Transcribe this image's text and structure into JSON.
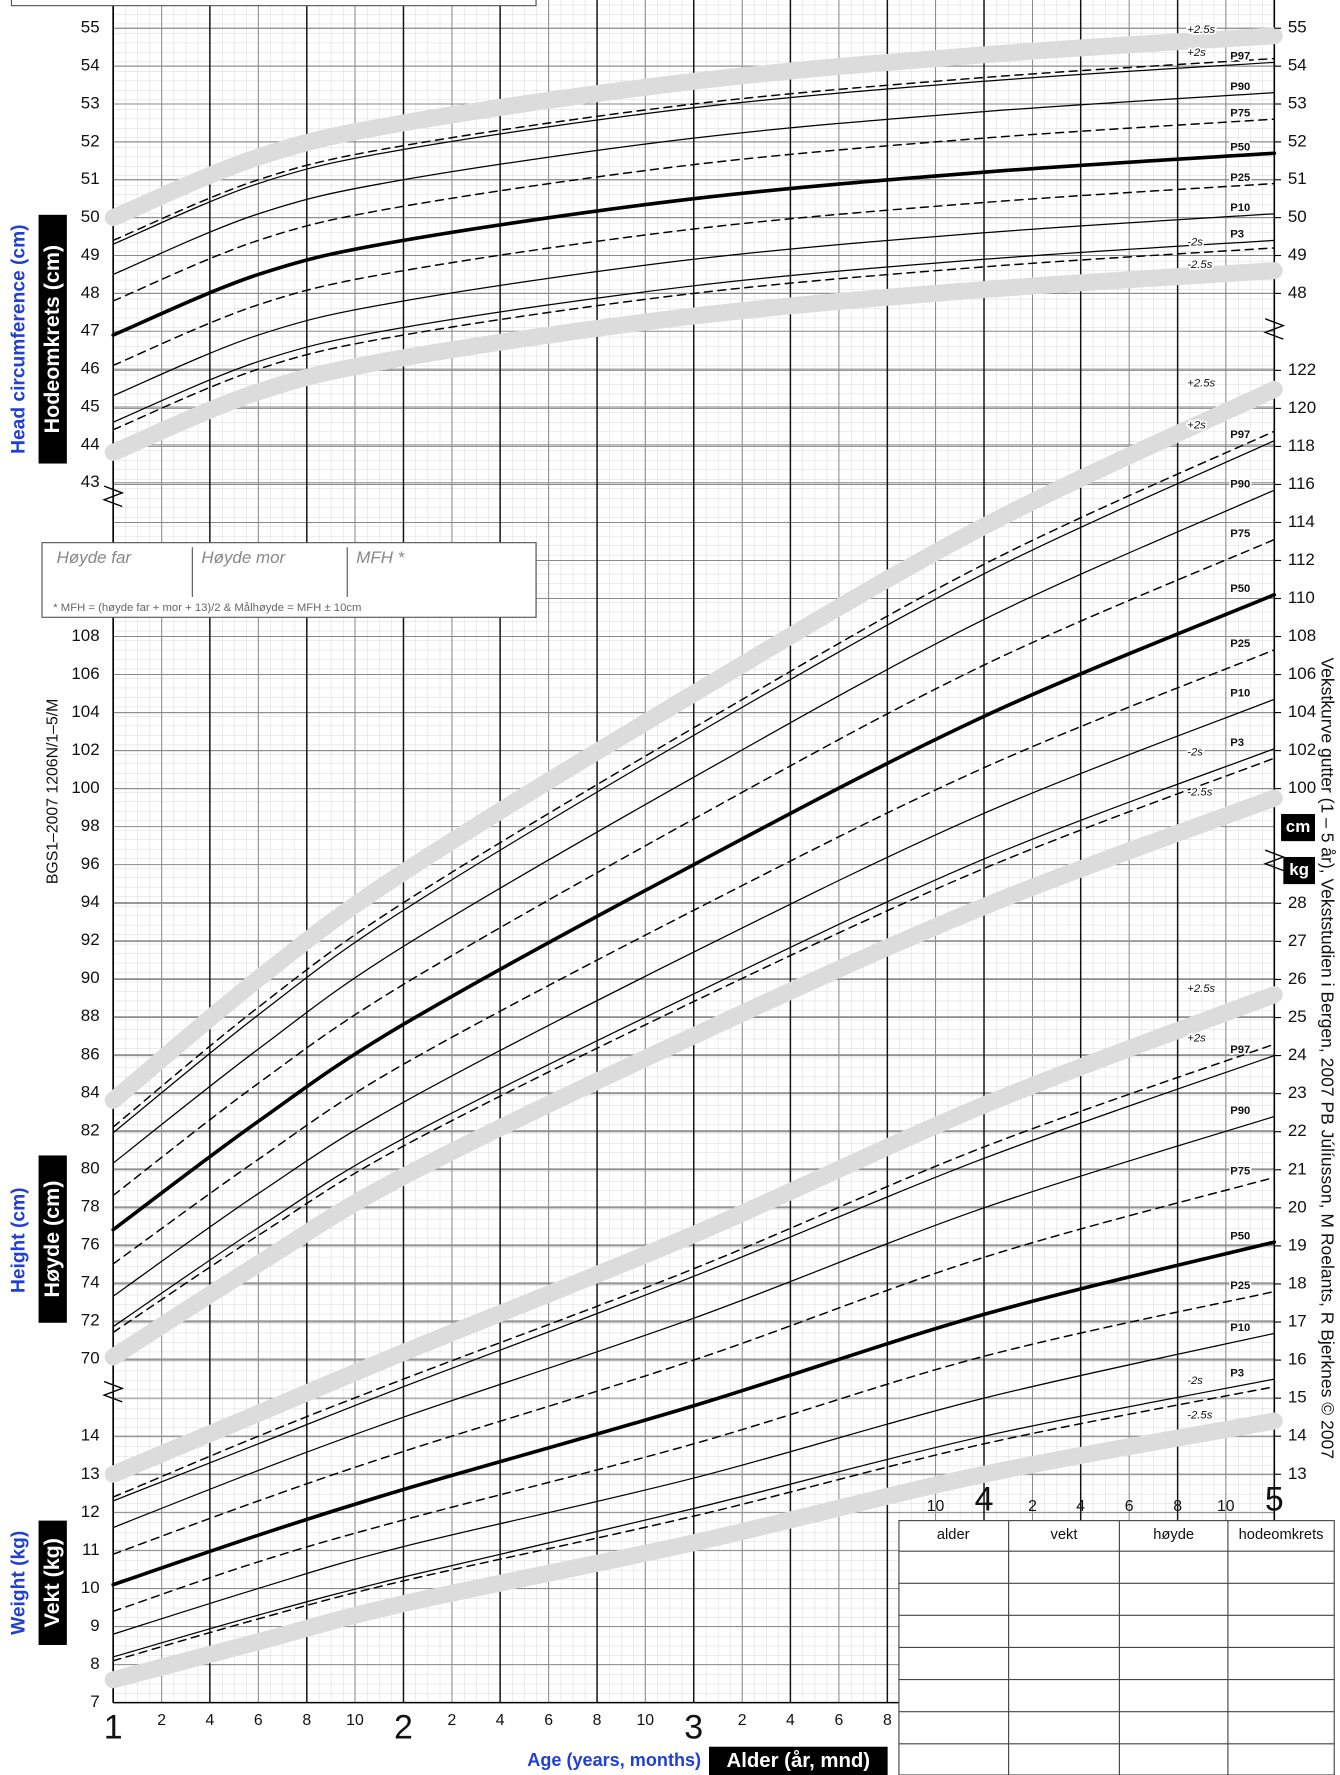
{
  "chart_data": [
    {
      "type": "line",
      "ylabel": "Hodeomkrets (cm)",
      "ylabel_en": "Head circumference (cm)",
      "x": [
        1,
        1.5,
        2,
        3,
        4,
        5
      ],
      "xlim": [
        1,
        5
      ],
      "ylim": [
        43,
        55.5
      ],
      "yticks": [
        43,
        44,
        45,
        46,
        47,
        48,
        49,
        50,
        51,
        52,
        53,
        54,
        55
      ],
      "right_yticks": [
        48,
        49,
        50,
        51,
        52,
        53,
        54,
        55
      ],
      "series": [
        {
          "name": "+2.5s",
          "style": "band",
          "color": "#dcdcdc",
          "values": [
            50.0,
            51.6,
            52.5,
            53.6,
            54.3,
            54.8
          ]
        },
        {
          "name": "+2s",
          "style": "sd-dashed",
          "color": "#000000",
          "values": [
            49.4,
            51.0,
            51.9,
            53.0,
            53.7,
            54.2
          ]
        },
        {
          "name": "P97",
          "style": "solid",
          "color": "#000000",
          "values": [
            49.3,
            50.9,
            51.8,
            52.9,
            53.6,
            54.1
          ]
        },
        {
          "name": "P90",
          "style": "solid",
          "color": "#000000",
          "values": [
            48.5,
            50.1,
            51.0,
            52.1,
            52.8,
            53.3
          ]
        },
        {
          "name": "P75",
          "style": "dashed",
          "color": "#000000",
          "values": [
            47.8,
            49.4,
            50.3,
            51.4,
            52.1,
            52.6
          ]
        },
        {
          "name": "P50",
          "style": "bold",
          "color": "#000000",
          "values": [
            46.9,
            48.5,
            49.4,
            50.5,
            51.2,
            51.7
          ]
        },
        {
          "name": "P25",
          "style": "dashed",
          "color": "#000000",
          "values": [
            46.1,
            47.7,
            48.6,
            49.7,
            50.4,
            50.9
          ]
        },
        {
          "name": "P10",
          "style": "solid",
          "color": "#000000",
          "values": [
            45.3,
            46.9,
            47.8,
            48.9,
            49.6,
            50.1
          ]
        },
        {
          "name": "P3",
          "style": "solid",
          "color": "#000000",
          "values": [
            44.6,
            46.2,
            47.1,
            48.2,
            48.9,
            49.4
          ]
        },
        {
          "name": "-2s",
          "style": "sd-dashed",
          "color": "#000000",
          "values": [
            44.4,
            46.0,
            46.9,
            48.0,
            48.7,
            49.2
          ]
        },
        {
          "name": "-2.5s",
          "style": "band",
          "color": "#dcdcdc",
          "values": [
            43.8,
            45.4,
            46.3,
            47.4,
            48.1,
            48.6
          ]
        }
      ]
    },
    {
      "type": "line",
      "ylabel": "Høyde (cm)",
      "ylabel_en": "Height (cm)",
      "x": [
        1,
        1.5,
        2,
        3,
        4,
        5
      ],
      "xlim": [
        1,
        5
      ],
      "ylim": [
        70,
        122
      ],
      "yticks": [
        70,
        72,
        74,
        76,
        78,
        80,
        82,
        84,
        86,
        88,
        90,
        92,
        94,
        96,
        98,
        100,
        102,
        104,
        106,
        108
      ],
      "right_yticks": [
        100,
        102,
        104,
        106,
        108,
        110,
        112,
        114,
        116,
        118,
        120,
        122
      ],
      "series": [
        {
          "name": "+2.5s",
          "style": "band",
          "color": "#dcdcdc",
          "values": [
            83.6,
            90.0,
            95.6,
            105.0,
            113.8,
            121.0
          ]
        },
        {
          "name": "+2s",
          "style": "sd-dashed",
          "color": "#000000",
          "values": [
            82.2,
            88.5,
            94.0,
            103.2,
            111.8,
            118.8
          ]
        },
        {
          "name": "P97",
          "style": "solid",
          "color": "#000000",
          "values": [
            81.9,
            88.1,
            93.6,
            102.8,
            111.3,
            118.3
          ]
        },
        {
          "name": "P90",
          "style": "solid",
          "color": "#000000",
          "values": [
            80.3,
            86.3,
            91.7,
            100.6,
            108.9,
            115.7
          ]
        },
        {
          "name": "P75",
          "style": "dashed",
          "color": "#000000",
          "values": [
            78.6,
            84.5,
            89.7,
            98.4,
            106.5,
            113.1
          ]
        },
        {
          "name": "P50",
          "style": "bold",
          "color": "#000000",
          "values": [
            76.8,
            82.5,
            87.6,
            96.0,
            103.8,
            110.2
          ]
        },
        {
          "name": "P25",
          "style": "dashed",
          "color": "#000000",
          "values": [
            75.0,
            80.5,
            85.5,
            93.6,
            101.1,
            107.3
          ]
        },
        {
          "name": "P10",
          "style": "solid",
          "color": "#000000",
          "values": [
            73.3,
            78.7,
            83.5,
            91.4,
            98.7,
            104.7
          ]
        },
        {
          "name": "P3",
          "style": "solid",
          "color": "#000000",
          "values": [
            71.7,
            76.9,
            81.6,
            89.2,
            96.3,
            102.1
          ]
        },
        {
          "name": "-2s",
          "style": "sd-dashed",
          "color": "#000000",
          "values": [
            71.4,
            76.5,
            81.2,
            88.8,
            95.8,
            101.6
          ]
        },
        {
          "name": "-2.5s",
          "style": "band",
          "color": "#dcdcdc",
          "values": [
            70.1,
            75.0,
            79.6,
            87.0,
            93.8,
            99.5
          ]
        }
      ]
    },
    {
      "type": "line",
      "ylabel": "Vekt (kg)",
      "ylabel_en": "Weight (kg)",
      "xlabel": "Alder (år, mnd)",
      "xlabel_en": "Age (years, months)",
      "x": [
        1,
        1.5,
        2,
        3,
        4,
        5
      ],
      "xlim": [
        1,
        5
      ],
      "ylim": [
        7,
        28
      ],
      "xticks": [
        1,
        {
          "value": 1.167,
          "label": "2"
        },
        {
          "value": 1.333,
          "label": "4"
        },
        {
          "value": 1.5,
          "label": "6"
        },
        {
          "value": 1.667,
          "label": "8"
        },
        {
          "value": 1.833,
          "label": "10"
        },
        2,
        {
          "value": 2.167,
          "label": "2"
        },
        {
          "value": 2.333,
          "label": "4"
        },
        {
          "value": 2.5,
          "label": "6"
        },
        {
          "value": 2.667,
          "label": "8"
        },
        {
          "value": 2.833,
          "label": "10"
        },
        3,
        {
          "value": 3.167,
          "label": "2"
        },
        {
          "value": 3.333,
          "label": "4"
        },
        {
          "value": 3.5,
          "label": "6"
        },
        {
          "value": 3.667,
          "label": "8"
        },
        {
          "value": 3.833,
          "label": "10"
        },
        4,
        {
          "value": 4.167,
          "label": "2"
        },
        {
          "value": 4.333,
          "label": "4"
        },
        {
          "value": 4.5,
          "label": "6"
        },
        {
          "value": 4.667,
          "label": "8"
        },
        {
          "value": 4.833,
          "label": "10"
        },
        5
      ],
      "yticks": [
        7,
        8,
        9,
        10,
        11,
        12,
        13,
        14
      ],
      "right_yticks": [
        13,
        14,
        15,
        16,
        17,
        18,
        19,
        20,
        21,
        22,
        23,
        24,
        25,
        26,
        27,
        28
      ],
      "series": [
        {
          "name": "+2.5s",
          "style": "band",
          "color": "#dcdcdc",
          "values": [
            13.0,
            14.6,
            16.2,
            19.3,
            22.7,
            25.6
          ]
        },
        {
          "name": "+2s",
          "style": "sd-dashed",
          "color": "#000000",
          "values": [
            12.4,
            14.0,
            15.5,
            18.4,
            21.6,
            24.3
          ]
        },
        {
          "name": "P97",
          "style": "solid",
          "color": "#000000",
          "values": [
            12.3,
            13.8,
            15.3,
            18.2,
            21.3,
            24.0
          ]
        },
        {
          "name": "P90",
          "style": "solid",
          "color": "#000000",
          "values": [
            11.6,
            13.1,
            14.5,
            17.1,
            20.0,
            22.4
          ]
        },
        {
          "name": "P75",
          "style": "dashed",
          "color": "#000000",
          "values": [
            10.9,
            12.3,
            13.6,
            16.0,
            18.7,
            20.8
          ]
        },
        {
          "name": "P50",
          "style": "bold",
          "color": "#000000",
          "values": [
            10.1,
            11.4,
            12.6,
            14.8,
            17.2,
            19.1
          ]
        },
        {
          "name": "P25",
          "style": "dashed",
          "color": "#000000",
          "values": [
            9.4,
            10.7,
            11.8,
            13.8,
            16.1,
            17.8
          ]
        },
        {
          "name": "P10",
          "style": "solid",
          "color": "#000000",
          "values": [
            8.8,
            10.0,
            11.1,
            12.9,
            15.0,
            16.7
          ]
        },
        {
          "name": "P3",
          "style": "solid",
          "color": "#000000",
          "values": [
            8.2,
            9.3,
            10.3,
            12.1,
            14.0,
            15.5
          ]
        },
        {
          "name": "-2s",
          "style": "sd-dashed",
          "color": "#000000",
          "values": [
            8.1,
            9.2,
            10.2,
            11.9,
            13.8,
            15.3
          ]
        },
        {
          "name": "-2.5s",
          "style": "band",
          "color": "#dcdcdc",
          "values": [
            7.6,
            8.6,
            9.6,
            11.2,
            13.0,
            14.4
          ]
        }
      ]
    }
  ],
  "parent_box": {
    "fields": [
      "Høyde far",
      "Høyde mor",
      "MFH *"
    ],
    "note": "* MFH = (høyde far + mor + 13)/2   &   Målhøyde = MFH ± 10cm"
  },
  "unit_badges": [
    "cm",
    "kg"
  ],
  "form_code": "BGS1–2007 1206N/1–5/M",
  "credit": "Vekstkurve gutter (1 – 5 år), Vekststudien i Bergen, 2007    PB Júlíusson, M Roelants, R Bjerknes © 2007",
  "table": {
    "headers": [
      "alder",
      "vekt",
      "høyde",
      "hodeomkrets"
    ]
  }
}
